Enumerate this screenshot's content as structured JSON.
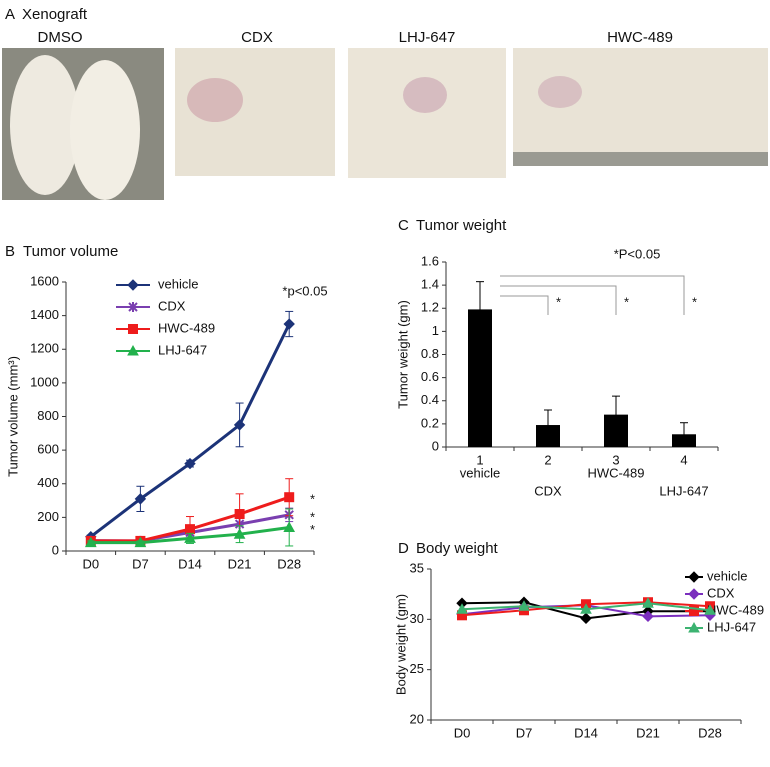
{
  "figure": {
    "panel": "A",
    "title": "Xenograft",
    "photos": [
      "DMSO",
      "CDX",
      "LHJ-647",
      "HWC-489"
    ]
  },
  "chart_data": [
    {
      "type": "line",
      "panel": "B",
      "title": "Tumor volume",
      "y_label": "Tumor volume (mm³)",
      "annotation": "*p<0.05",
      "categories": [
        "D0",
        "D7",
        "D14",
        "D21",
        "D28"
      ],
      "ylim": [
        0,
        1600
      ],
      "yticks": [
        0,
        200,
        400,
        600,
        800,
        1000,
        1200,
        1400,
        1600
      ],
      "legend": "upper left",
      "series": [
        {
          "name": "vehicle",
          "color": "#1c3378",
          "marker": "diamond",
          "values": [
            85,
            310,
            520,
            750,
            1350
          ],
          "errors": [
            10,
            75,
            20,
            130,
            75
          ]
        },
        {
          "name": "CDX",
          "color": "#7a3fb0",
          "marker": "x",
          "values": [
            62,
            60,
            110,
            160,
            215
          ],
          "errors": [
            10,
            10,
            40,
            60,
            40
          ],
          "significance_label": "*"
        },
        {
          "name": "HWC-489",
          "color": "#ee1c1c",
          "marker": "square",
          "values": [
            60,
            60,
            130,
            220,
            320
          ],
          "errors": [
            10,
            10,
            75,
            120,
            110
          ],
          "significance_label": "*"
        },
        {
          "name": "LHJ-647",
          "color": "#22b14c",
          "marker": "triangle",
          "values": [
            50,
            50,
            75,
            100,
            140
          ],
          "errors": [
            10,
            10,
            30,
            50,
            110
          ],
          "significance_label": "*"
        }
      ]
    },
    {
      "type": "bar",
      "panel": "C",
      "title": "Tumor weight",
      "y_label": "Tumor weight (gm)",
      "annotation": "*P<0.05",
      "categories": [
        "1",
        "2",
        "3",
        "4"
      ],
      "category_names": [
        "vehicle",
        "CDX",
        "HWC-489",
        "LHJ-647"
      ],
      "values": [
        1.19,
        0.19,
        0.28,
        0.11
      ],
      "errors": [
        0.24,
        0.13,
        0.16,
        0.1
      ],
      "color": "#000000",
      "ylim": [
        0,
        1.6
      ],
      "yticks": [
        0,
        0.2,
        0.4,
        0.6,
        0.8,
        1,
        1.2,
        1.4,
        1.6
      ],
      "comparison_labels": [
        "*",
        "*",
        "*"
      ]
    },
    {
      "type": "line",
      "panel": "D",
      "title": "Body weight",
      "y_label": "Body weight (gm)",
      "categories": [
        "D0",
        "D7",
        "D14",
        "D21",
        "D28"
      ],
      "ylim": [
        20,
        35
      ],
      "yticks": [
        20,
        25,
        30,
        35
      ],
      "legend": "upper right",
      "series": [
        {
          "name": "vehicle",
          "color": "#000000",
          "marker": "diamond",
          "values": [
            31.6,
            31.7,
            30.1,
            30.8,
            30.8
          ]
        },
        {
          "name": "CDX",
          "color": "#7b2fbe",
          "marker": "diamond",
          "values": [
            30.5,
            31.2,
            31.4,
            30.3,
            30.4
          ]
        },
        {
          "name": "HWC-489",
          "color": "#ee1c1c",
          "marker": "square",
          "values": [
            30.4,
            30.9,
            31.5,
            31.7,
            31.3
          ]
        },
        {
          "name": "LHJ-647",
          "color": "#3cb371",
          "marker": "triangle",
          "values": [
            31.0,
            31.3,
            31.0,
            31.6,
            30.9
          ]
        }
      ]
    }
  ]
}
